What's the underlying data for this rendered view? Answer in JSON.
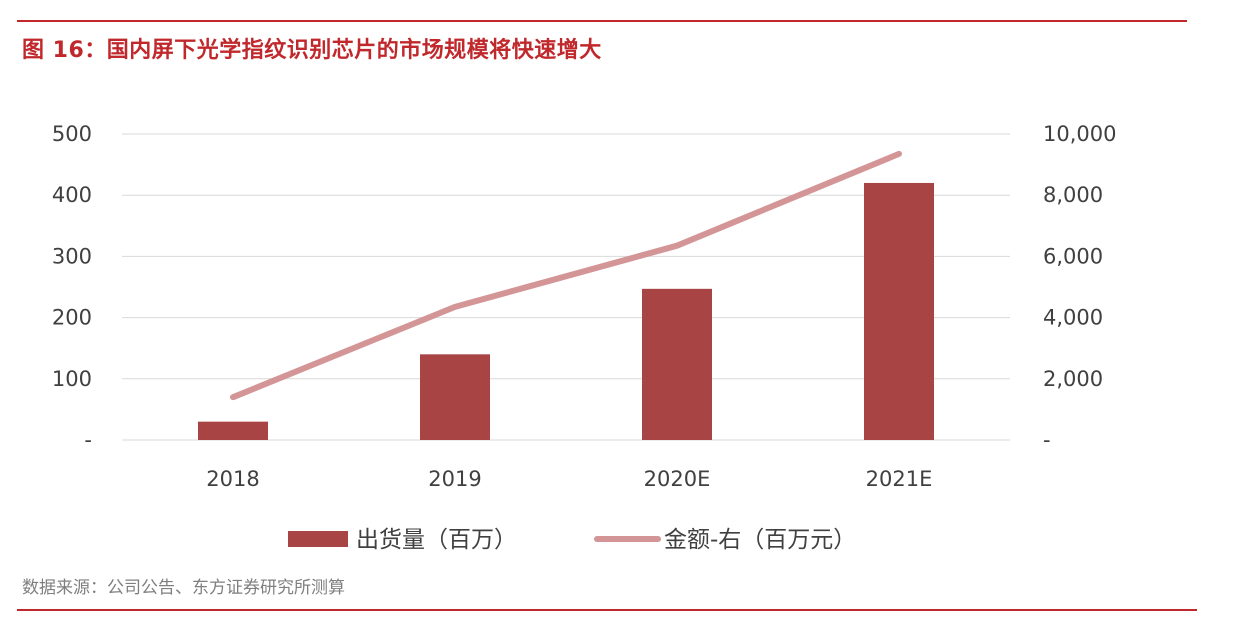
{
  "header": {
    "title": "图 16：国内屏下光学指纹识别芯片的市场规模将快速增大"
  },
  "footer": {
    "source": "数据来源：公司公告、东方证券研究所测算"
  },
  "colors": {
    "accent": "#c0282c",
    "bar": "#a84444",
    "line": "#d49596",
    "grid": "#d9d9d9",
    "text": "#404040"
  },
  "chart_data": {
    "type": "bar",
    "categories": [
      "2018",
      "2019",
      "2020E",
      "2021E"
    ],
    "series": [
      {
        "name": "出货量（百万）",
        "type": "bar",
        "axis": "left",
        "values": [
          30,
          140,
          247,
          420
        ]
      },
      {
        "name": "金额-右（百万元）",
        "type": "line",
        "axis": "right",
        "values": [
          1400,
          4350,
          6350,
          9350
        ]
      }
    ],
    "y_left": {
      "ylim": [
        0,
        500
      ],
      "ticks": [
        "-",
        "100",
        "200",
        "300",
        "400",
        "500"
      ]
    },
    "y_right": {
      "ylim": [
        0,
        10000
      ],
      "ticks": [
        "-",
        "2,000",
        "4,000",
        "6,000",
        "8,000",
        "10,000"
      ]
    },
    "grid": true,
    "legend_position": "bottom"
  }
}
